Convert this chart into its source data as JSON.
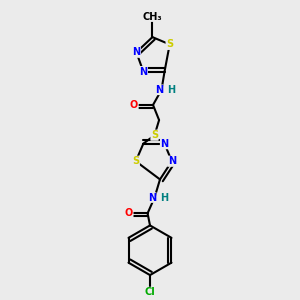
{
  "background_color": "#ebebeb",
  "line_color": "#000000",
  "bond_width": 1.5,
  "atom_colors": {
    "N": "#0000ff",
    "S": "#cccc00",
    "O": "#ff0000",
    "Cl": "#00aa00",
    "C": "#000000",
    "H": "#008080"
  }
}
